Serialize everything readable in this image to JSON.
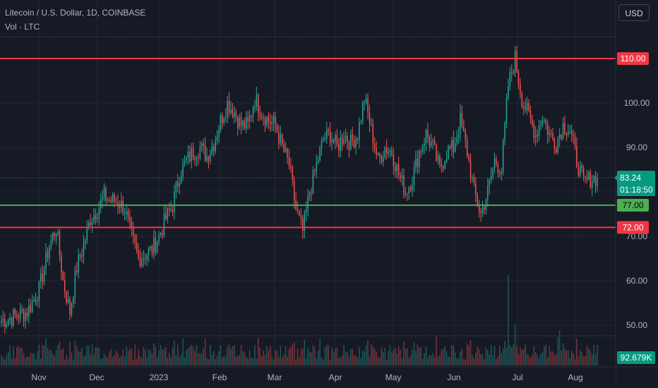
{
  "header": {
    "title": "Litecoin / U.S. Dollar, 1D, COINBASE",
    "volume_label": "Vol · LTC",
    "currency_button": "USD"
  },
  "colors": {
    "background": "#161a25",
    "up": "#26a69a",
    "down": "#ef5350",
    "support_line": "#4caf50",
    "resistance_line": "#f23645",
    "axis_text": "#b2b5be"
  },
  "price_axis": {
    "ticks": [
      "100.00",
      "90.00",
      "70.00",
      "60.00",
      "50.00"
    ],
    "tick_values": [
      100,
      90,
      70,
      60,
      50
    ]
  },
  "time_axis": {
    "labels": [
      "Nov",
      "Dec",
      "2023",
      "Feb",
      "Mar",
      "Apr",
      "May",
      "Jun",
      "Jul",
      "Aug"
    ]
  },
  "horizontal_lines": [
    {
      "label": "110.00",
      "value": 110.0,
      "color": "#f23645"
    },
    {
      "label": "77.00",
      "value": 77.0,
      "color": "#4caf50"
    },
    {
      "label": "72.00",
      "value": 72.0,
      "color": "#f23645"
    }
  ],
  "last_price": {
    "value": "83.24",
    "countdown": "01:18:50"
  },
  "volume_badge": "92.679K",
  "chart_data": {
    "type": "candlestick",
    "symbol": "Litecoin / U.S. Dollar",
    "interval": "1D",
    "exchange": "COINBASE",
    "x_labels": [
      "Nov",
      "Dec",
      "2023",
      "Feb",
      "Mar",
      "Apr",
      "May",
      "Jun",
      "Jul",
      "Aug"
    ],
    "y_ticks": [
      50,
      60,
      70,
      90,
      100
    ],
    "ylim": [
      46,
      115
    ],
    "close_path": [
      [
        0,
        51
      ],
      [
        8,
        52
      ],
      [
        15,
        53
      ],
      [
        22,
        58
      ],
      [
        28,
        68
      ],
      [
        32,
        72
      ],
      [
        36,
        60
      ],
      [
        40,
        53
      ],
      [
        44,
        63
      ],
      [
        48,
        68
      ],
      [
        52,
        74
      ],
      [
        56,
        76
      ],
      [
        60,
        79
      ],
      [
        64,
        78
      ],
      [
        68,
        78
      ],
      [
        72,
        76
      ],
      [
        76,
        70
      ],
      [
        80,
        65
      ],
      [
        84,
        66
      ],
      [
        88,
        67
      ],
      [
        92,
        70
      ],
      [
        96,
        74
      ],
      [
        100,
        77
      ],
      [
        104,
        84
      ],
      [
        108,
        87
      ],
      [
        112,
        89
      ],
      [
        116,
        90
      ],
      [
        120,
        88
      ],
      [
        124,
        91
      ],
      [
        128,
        96
      ],
      [
        132,
        100
      ],
      [
        136,
        98
      ],
      [
        140,
        95
      ],
      [
        144,
        95
      ],
      [
        148,
        101
      ],
      [
        152,
        98
      ],
      [
        156,
        96
      ],
      [
        160,
        95
      ],
      [
        164,
        90
      ],
      [
        168,
        86
      ],
      [
        172,
        76
      ],
      [
        176,
        71
      ],
      [
        180,
        80
      ],
      [
        184,
        86
      ],
      [
        188,
        92
      ],
      [
        192,
        93
      ],
      [
        196,
        90
      ],
      [
        200,
        93
      ],
      [
        204,
        91
      ],
      [
        208,
        93
      ],
      [
        212,
        101
      ],
      [
        216,
        94
      ],
      [
        220,
        87
      ],
      [
        224,
        90
      ],
      [
        228,
        89
      ],
      [
        232,
        84
      ],
      [
        236,
        80
      ],
      [
        240,
        83
      ],
      [
        244,
        89
      ],
      [
        248,
        93
      ],
      [
        252,
        90
      ],
      [
        256,
        85
      ],
      [
        260,
        89
      ],
      [
        264,
        90
      ],
      [
        268,
        96
      ],
      [
        272,
        89
      ],
      [
        276,
        80
      ],
      [
        280,
        75
      ],
      [
        284,
        80
      ],
      [
        288,
        87
      ],
      [
        292,
        85
      ],
      [
        296,
        104
      ],
      [
        300,
        110
      ],
      [
        304,
        101
      ],
      [
        308,
        97
      ],
      [
        312,
        93
      ],
      [
        316,
        97
      ],
      [
        320,
        93
      ],
      [
        324,
        91
      ],
      [
        328,
        95
      ],
      [
        332,
        94
      ],
      [
        336,
        87
      ],
      [
        340,
        82
      ],
      [
        344,
        83
      ],
      [
        348,
        83.24
      ]
    ],
    "volume_scale": "relative"
  }
}
